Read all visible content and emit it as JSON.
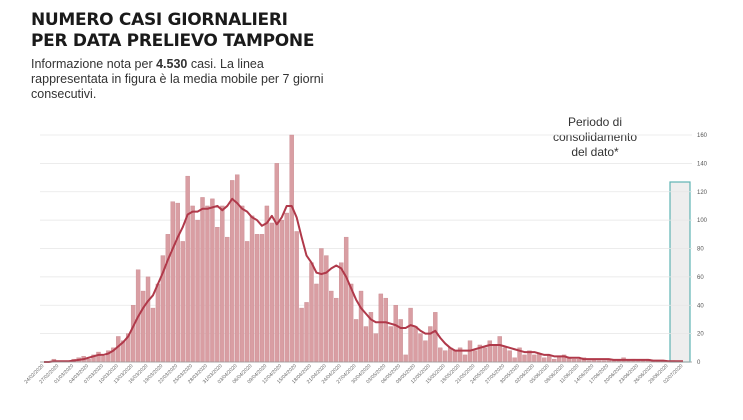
{
  "chart_data": {
    "type": "bar",
    "title": [
      "NUMERO CASI GIORNALIERI",
      "PER DATA PRELIEVO TAMPONE"
    ],
    "subtitle": [
      "Informazione nota per ",
      "4.530",
      " casi. La linea rappresentata in figura è la media mobile per 7 giorni consecutivi."
    ],
    "annotation": [
      "Periodo di",
      "consolidamento",
      "del dato*"
    ],
    "categories": [
      "24/02/2020",
      null,
      null,
      "27/02/2020",
      null,
      null,
      "01/03/2020",
      null,
      null,
      "04/03/2020",
      null,
      null,
      "07/03/2020",
      null,
      null,
      "10/03/2020",
      null,
      null,
      "13/03/2020",
      null,
      null,
      "16/03/2020",
      null,
      null,
      "19/03/2020",
      null,
      null,
      "22/03/2020",
      null,
      null,
      "25/03/2020",
      null,
      null,
      "28/03/2020",
      null,
      null,
      "31/03/2020",
      null,
      null,
      "03/04/2020",
      null,
      null,
      "06/04/2020",
      null,
      null,
      "09/04/2020",
      null,
      null,
      "12/04/2020",
      null,
      null,
      "15/04/2020",
      null,
      null,
      "18/04/2020",
      null,
      null,
      "21/04/2020",
      null,
      null,
      "24/04/2020",
      null,
      null,
      "27/04/2020",
      null,
      null,
      "30/04/2020",
      null,
      null,
      "03/05/2020",
      null,
      null,
      "06/05/2020",
      null,
      null,
      "09/05/2020",
      null,
      null,
      "12/05/2020",
      null,
      null,
      "15/05/2020",
      null,
      null,
      "18/05/2020",
      null,
      null,
      "21/05/2020",
      null,
      null,
      "24/05/2020",
      null,
      null,
      "27/05/2020",
      null,
      null,
      "30/05/2020",
      null,
      null,
      "02/06/2020",
      null,
      null,
      "05/06/2020",
      null,
      null,
      "08/06/2020",
      null,
      null,
      "11/06/2020",
      null,
      null,
      "14/06/2020",
      null,
      null,
      "17/06/2020",
      null,
      null,
      "20/06/2020",
      null,
      null,
      "23/06/2020",
      null,
      null,
      "26/06/2020",
      null,
      null,
      "29/06/2020",
      null,
      null,
      "02/07/2020"
    ],
    "series": [
      {
        "type": "bar",
        "color": "#d99ea3",
        "values": [
          0,
          0,
          2,
          0,
          0,
          0,
          2,
          3,
          4,
          2,
          5,
          7,
          4,
          8,
          10,
          18,
          15,
          20,
          40,
          65,
          50,
          60,
          38,
          55,
          75,
          90,
          113,
          112,
          85,
          131,
          110,
          100,
          116,
          110,
          115,
          95,
          110,
          88,
          128,
          132,
          110,
          85,
          103,
          90,
          90,
          110,
          98,
          140,
          100,
          105,
          160,
          92,
          38,
          42,
          70,
          55,
          80,
          75,
          50,
          45,
          70,
          88,
          55,
          30,
          50,
          25,
          35,
          20,
          48,
          45,
          25,
          40,
          30,
          5,
          38,
          25,
          20,
          15,
          25,
          35,
          10,
          8,
          10,
          8,
          10,
          5,
          15,
          8,
          12,
          10,
          15,
          12,
          18,
          10,
          8,
          3,
          10,
          5,
          8,
          5,
          6,
          3,
          5,
          2,
          4,
          5,
          3,
          2,
          2,
          3,
          1,
          2,
          1,
          1,
          2,
          1,
          1,
          3,
          1,
          2,
          1,
          1,
          2,
          1,
          1,
          1,
          0,
          1,
          0,
          0
        ]
      },
      {
        "type": "line",
        "color": "#b0394a",
        "values": [
          0,
          0,
          0.5,
          0.5,
          0.5,
          0.5,
          1,
          1.5,
          2,
          3,
          4,
          5,
          5,
          6,
          8,
          11,
          14,
          18,
          25,
          32,
          38,
          43,
          47,
          55,
          63,
          72,
          80,
          88,
          95,
          104,
          106,
          106,
          108,
          108,
          109,
          110,
          107,
          110,
          115,
          112,
          108,
          106,
          102,
          100,
          96,
          98,
          103,
          97,
          102,
          110,
          110,
          102,
          88,
          75,
          70,
          63,
          62,
          63,
          66,
          68,
          66,
          60,
          52,
          44,
          38,
          34,
          30,
          28,
          28,
          28,
          27,
          26,
          24,
          24,
          26,
          25,
          22,
          20,
          20,
          22,
          17,
          13,
          10,
          8,
          8,
          8,
          8,
          9,
          10,
          11,
          12,
          12,
          12,
          11,
          10,
          9,
          8,
          7,
          7,
          7,
          6,
          5,
          5,
          4,
          4,
          4,
          3,
          3,
          3,
          2,
          2,
          2,
          2,
          2,
          2,
          1.5,
          1.5,
          1.5,
          1.5,
          1.5,
          1.5,
          1.5,
          1.5,
          1,
          1,
          1,
          0.5,
          0.5,
          0.5,
          0.5
        ]
      }
    ],
    "ylim": [
      0,
      160
    ],
    "yticks": [
      0,
      20,
      40,
      60,
      80,
      100,
      120,
      140,
      160
    ],
    "grid": true
  }
}
